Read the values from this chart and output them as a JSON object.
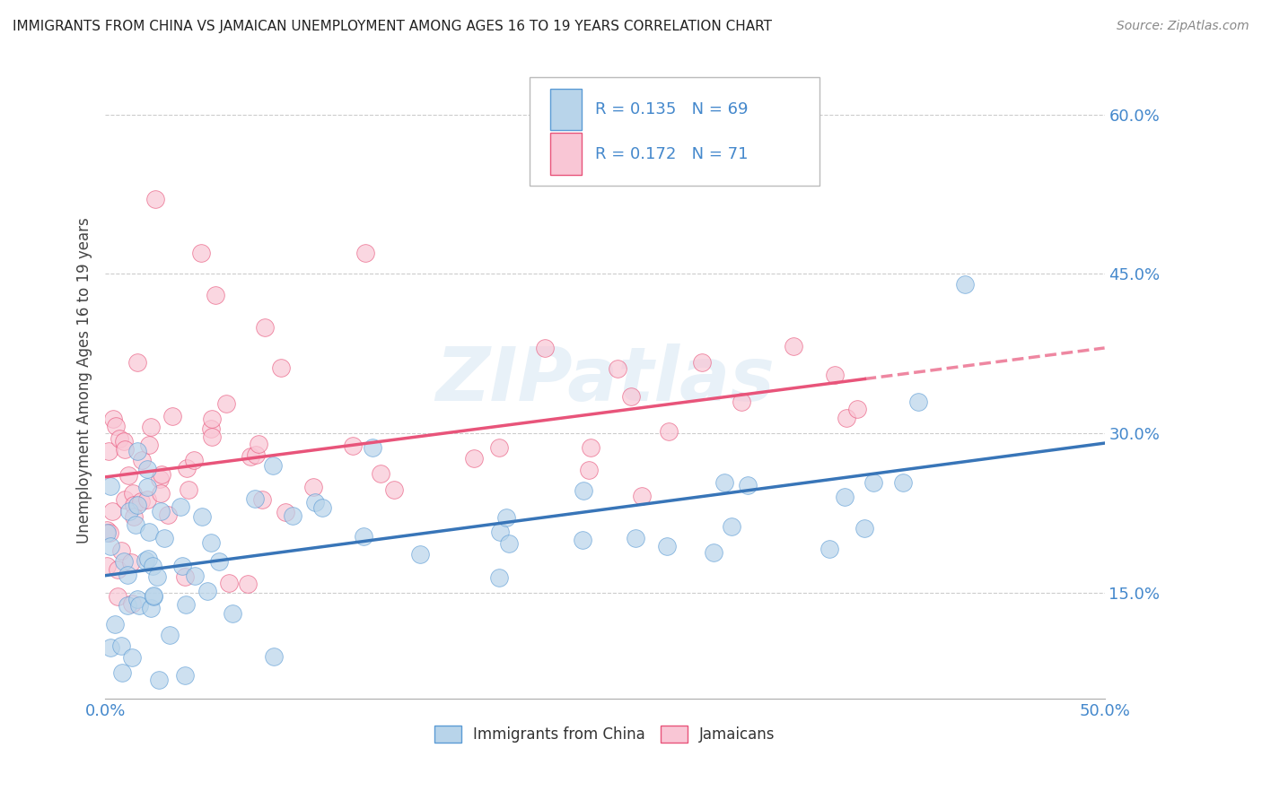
{
  "title": "IMMIGRANTS FROM CHINA VS JAMAICAN UNEMPLOYMENT AMONG AGES 16 TO 19 YEARS CORRELATION CHART",
  "source": "Source: ZipAtlas.com",
  "ylabel": "Unemployment Among Ages 16 to 19 years",
  "ytick_values": [
    0.15,
    0.3,
    0.45,
    0.6
  ],
  "xlim": [
    0.0,
    0.5
  ],
  "ylim": [
    0.05,
    0.65
  ],
  "legend_R1": "R = 0.135",
  "legend_N1": "N = 69",
  "legend_R2": "R = 0.172",
  "legend_N2": "N = 71",
  "color_china_fill": "#b8d4ea",
  "color_china_edge": "#5b9bd5",
  "color_jamaica_fill": "#f9c6d5",
  "color_jamaica_edge": "#e8547a",
  "color_china_line": "#3875b8",
  "color_jamaica_line": "#e8547a",
  "legend_label1": "Immigrants from China",
  "legend_label2": "Jamaicans",
  "watermark": "ZIPatlas",
  "bg_color": "#ffffff",
  "grid_color": "#cccccc",
  "title_color": "#222222",
  "source_color": "#888888",
  "tick_color": "#4488cc",
  "ylabel_color": "#444444"
}
